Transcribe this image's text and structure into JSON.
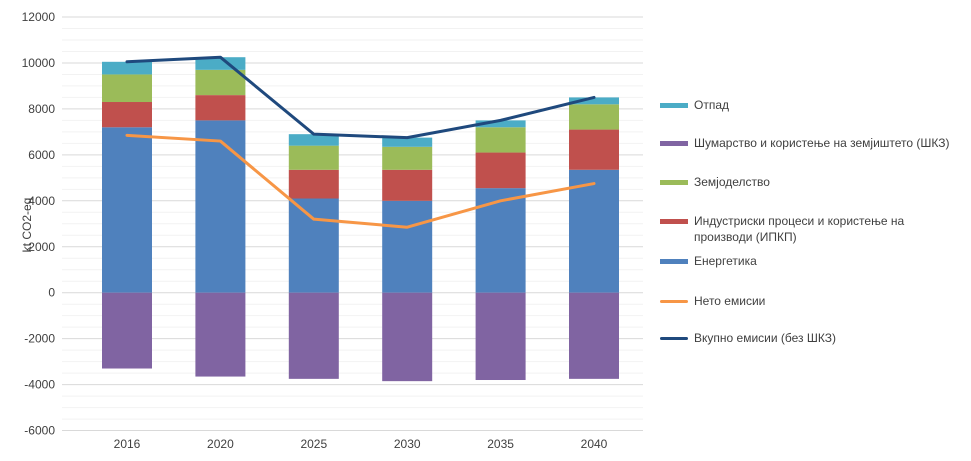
{
  "chart_data": {
    "type": "bar",
    "subtype": "stacked-bar-with-lines",
    "title": "",
    "xlabel": "",
    "ylabel": "kt CO2-eq",
    "categories": [
      "2016",
      "2020",
      "2025",
      "2030",
      "2035",
      "2040"
    ],
    "stacked_series": [
      {
        "key": "energetika",
        "name": "Енергетика",
        "color": "#4F81BD",
        "values": [
          7200,
          7500,
          4100,
          4000,
          4550,
          5350
        ]
      },
      {
        "key": "ipkp",
        "name": "Индустриски процеси и користење на производи (ИПКП)",
        "color": "#C0504D",
        "values": [
          1100,
          1100,
          1250,
          1350,
          1550,
          1750
        ]
      },
      {
        "key": "zemjodelstvo",
        "name": "Земјоделство",
        "color": "#9BBB59",
        "values": [
          1200,
          1100,
          1050,
          1000,
          1100,
          1100
        ]
      },
      {
        "key": "otpad",
        "name": "Отпад",
        "color": "#4BACC6",
        "values": [
          550,
          550,
          500,
          400,
          300,
          300
        ]
      },
      {
        "key": "shkz",
        "name": "Шумарство и користење на земјиштето (ШКЗ)",
        "color": "#8064A2",
        "values": [
          -3300,
          -3650,
          -3750,
          -3850,
          -3800,
          -3750
        ]
      }
    ],
    "line_series": [
      {
        "key": "neto-emisii",
        "name": "Нето емисии",
        "color": "#F79646",
        "values": [
          6850,
          6600,
          3200,
          2850,
          4000,
          4750
        ]
      },
      {
        "key": "vkupno-emisii",
        "name": "Вкупно емисии (без ШКЗ)",
        "color": "#1F497D",
        "values": [
          10050,
          10250,
          6900,
          6750,
          7500,
          8500
        ]
      }
    ],
    "ylim": [
      -6000,
      12000
    ],
    "y_major_step": 2000,
    "y_minor_step": 500,
    "y_tick_labels": [
      "12000",
      "10000",
      "8000",
      "6000",
      "4000",
      "2000",
      "0",
      "-2000",
      "-4000",
      "-6000"
    ],
    "grid": true,
    "legend_position": "right"
  },
  "axis": {
    "ylabel": "kt CO2-eq"
  },
  "legend": {
    "items": [
      {
        "label": "Отпад",
        "color": "#4BACC6",
        "marker": "rect"
      },
      {
        "label": "Шумарство и користење на земјиштето (ШКЗ)",
        "color": "#8064A2",
        "marker": "rect"
      },
      {
        "label": "Земјоделство",
        "color": "#9BBB59",
        "marker": "rect"
      },
      {
        "label": "Индустриски процеси и користење на производи (ИПКП)",
        "color": "#C0504D",
        "marker": "rect"
      },
      {
        "label": "Енергетика",
        "color": "#4F81BD",
        "marker": "rect"
      },
      {
        "label": "Нето емисии",
        "color": "#F79646",
        "marker": "line"
      },
      {
        "label": "Вкупно емисии (без ШКЗ)",
        "color": "#1F497D",
        "marker": "line"
      }
    ]
  },
  "colors": {
    "grid_major": "#D9D9D9",
    "grid_minor": "#F2F2F2",
    "text": "#404040",
    "background": "#FFFFFF"
  }
}
